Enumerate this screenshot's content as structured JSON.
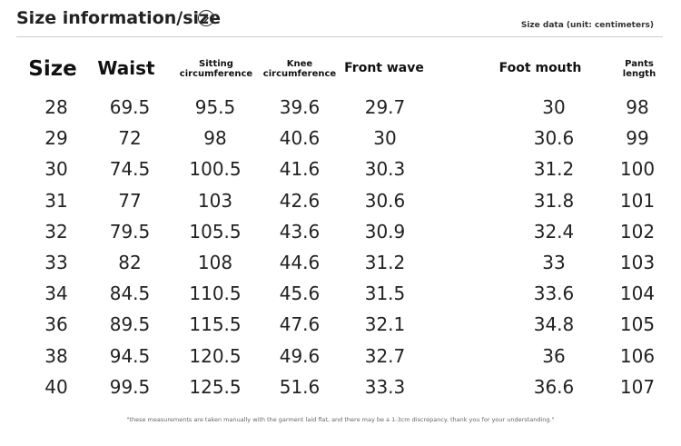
{
  "header": {
    "title": "Size information/size",
    "arrow_icon": "chevron-right-circle-icon",
    "unit_note": "Size data (unit: centimeters)"
  },
  "columns": [
    {
      "label": "Size"
    },
    {
      "label": "Waist"
    },
    {
      "label": "Sitting\ncircumference"
    },
    {
      "label": "Knee\ncircumference"
    },
    {
      "label": "Front wave"
    },
    {
      "label": "Foot mouth"
    },
    {
      "label": "Pants\nlength"
    }
  ],
  "rows": [
    [
      "28",
      "69.5",
      "95.5",
      "39.6",
      "29.7",
      "30",
      "98"
    ],
    [
      "29",
      "72",
      "98",
      "40.6",
      "30",
      "30.6",
      "99"
    ],
    [
      "30",
      "74.5",
      "100.5",
      "41.6",
      "30.3",
      "31.2",
      "100"
    ],
    [
      "31",
      "77",
      "103",
      "42.6",
      "30.6",
      "31.8",
      "101"
    ],
    [
      "32",
      "79.5",
      "105.5",
      "43.6",
      "30.9",
      "32.4",
      "102"
    ],
    [
      "33",
      "82",
      "108",
      "44.6",
      "31.2",
      "33",
      "103"
    ],
    [
      "34",
      "84.5",
      "110.5",
      "45.6",
      "31.5",
      "33.6",
      "104"
    ],
    [
      "36",
      "89.5",
      "115.5",
      "47.6",
      "32.1",
      "34.8",
      "105"
    ],
    [
      "38",
      "94.5",
      "120.5",
      "49.6",
      "32.7",
      "36",
      "106"
    ],
    [
      "40",
      "99.5",
      "125.5",
      "51.6",
      "33.3",
      "36.6",
      "107"
    ]
  ],
  "footer": {
    "note": "\"these measurements are taken manually with the garment laid flat, and there may be a 1-3cm discrepancy. thank you for your understanding.\""
  }
}
